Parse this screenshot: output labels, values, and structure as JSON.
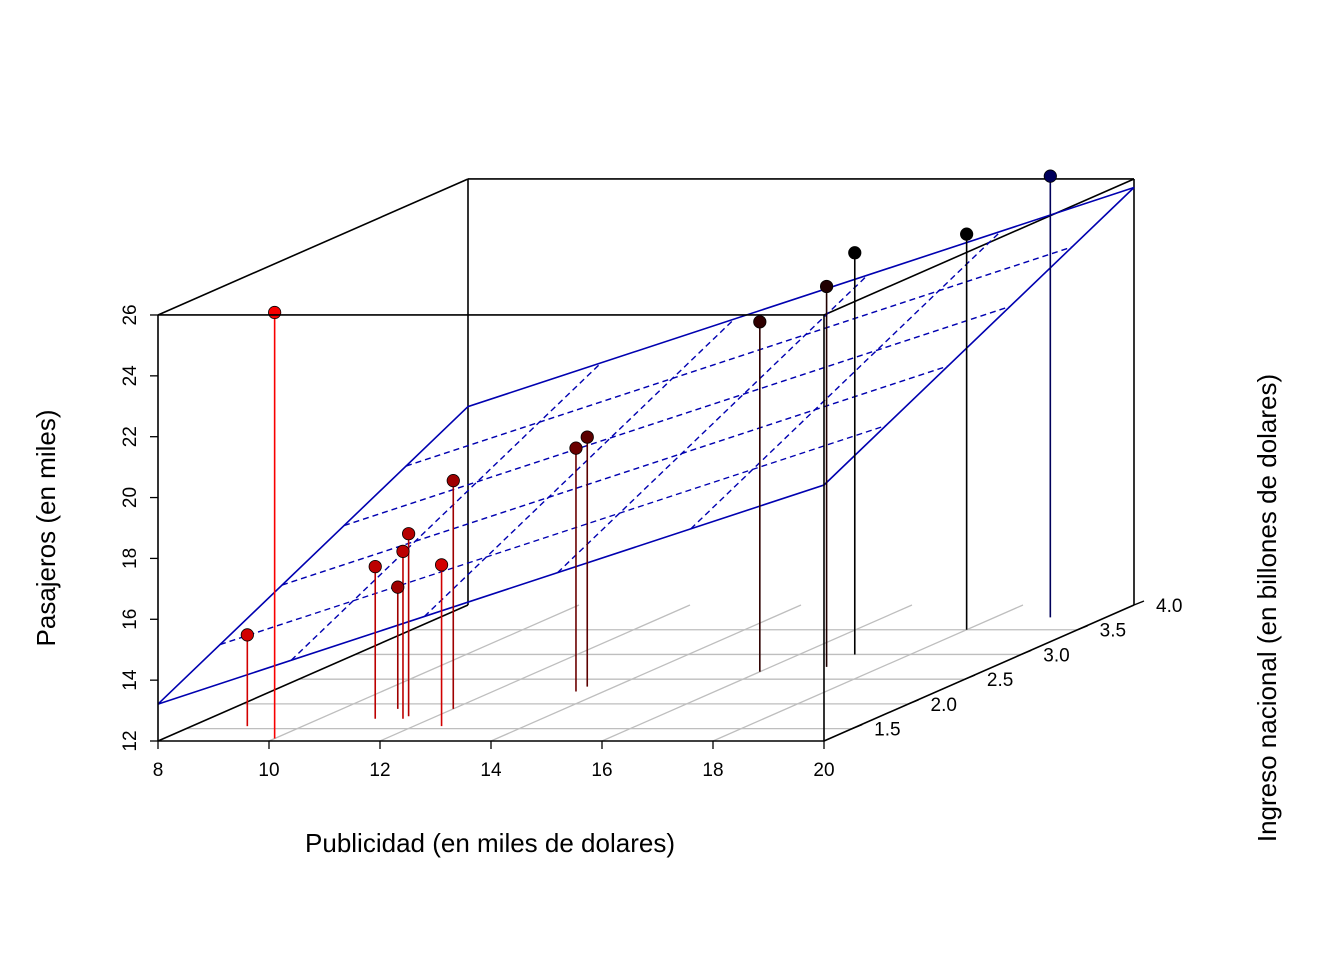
{
  "chart_data": {
    "type": "scatter3d",
    "title": "",
    "xlabel": "Publicidad (en miles de dolares)",
    "ylabel": "Ingreso nacional (en billones de dolares)",
    "zlabel": "Pasajeros (en miles)",
    "xlim": [
      8,
      20
    ],
    "ylim": [
      1.25,
      4.0
    ],
    "zlim": [
      12,
      26
    ],
    "x_ticks": [
      "8",
      "10",
      "12",
      "14",
      "16",
      "18",
      "20"
    ],
    "y_ticks": [
      "1.5",
      "2.0",
      "2.5",
      "3.0",
      "3.5",
      "4.0"
    ],
    "z_ticks": [
      "12",
      "14",
      "16",
      "18",
      "20",
      "22",
      "24",
      "26"
    ],
    "grid": true,
    "box": true,
    "points": [
      {
        "x": 9.0,
        "y": 1.55,
        "z": 15.0
      },
      {
        "x": 10.0,
        "y": 1.3,
        "z": 26.0
      },
      {
        "x": 11.0,
        "y": 1.9,
        "z": 16.0
      },
      {
        "x": 11.0,
        "y": 1.7,
        "z": 17.0
      },
      {
        "x": 11.5,
        "y": 1.7,
        "z": 17.5
      },
      {
        "x": 11.5,
        "y": 1.75,
        "z": 18.0
      },
      {
        "x": 12.0,
        "y": 1.9,
        "z": 19.5
      },
      {
        "x": 12.5,
        "y": 1.55,
        "z": 17.3
      },
      {
        "x": 13.5,
        "y": 2.25,
        "z": 20.0
      },
      {
        "x": 13.5,
        "y": 2.35,
        "z": 20.2
      },
      {
        "x": 16.0,
        "y": 2.65,
        "z": 23.5
      },
      {
        "x": 17.0,
        "y": 2.75,
        "z": 24.5
      },
      {
        "x": 17.0,
        "y": 3.0,
        "z": 25.2
      },
      {
        "x": 18.0,
        "y": 3.5,
        "z": 25.0
      },
      {
        "x": 19.0,
        "y": 3.75,
        "z": 26.5
      }
    ],
    "fitted_plane": {
      "intercept": 6.0,
      "coef_x": 0.6,
      "coef_y": 1.93
    }
  },
  "colors": {
    "plane": "#0000b0",
    "box": "#000000",
    "grid": "#bebebe",
    "point_low": "#ff0000",
    "point_high": "#000000",
    "point_last": "#00005a"
  }
}
